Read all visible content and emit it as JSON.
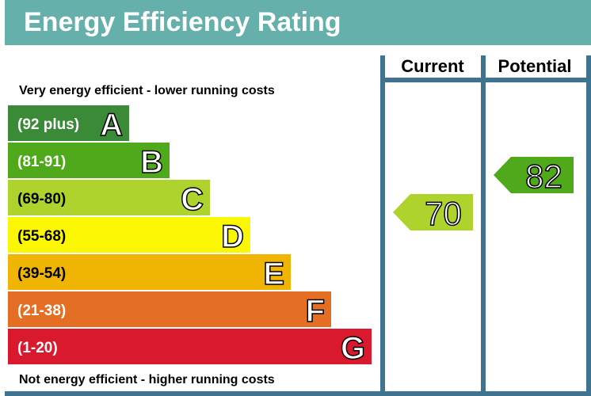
{
  "title": "Energy Efficiency Rating",
  "chart_data": {
    "type": "bar",
    "title": "Energy Efficiency Rating",
    "top_note": "Very energy efficient - lower running costs",
    "bottom_note": "Not energy efficient - higher running costs",
    "columns": [
      "Current",
      "Potential"
    ],
    "bands": [
      {
        "range": "(92 plus)",
        "letter": "A",
        "color": "#3a8a37"
      },
      {
        "range": "(81-91)",
        "letter": "B",
        "color": "#4fa91a"
      },
      {
        "range": "(69-80)",
        "letter": "C",
        "color": "#add32c"
      },
      {
        "range": "(55-68)",
        "letter": "D",
        "color": "#fbf603"
      },
      {
        "range": "(39-54)",
        "letter": "E",
        "color": "#efb502"
      },
      {
        "range": "(21-38)",
        "letter": "F",
        "color": "#e46f24"
      },
      {
        "range": "(1-20)",
        "letter": "G",
        "color": "#d9192d"
      }
    ],
    "current": {
      "value": "70",
      "band": "C",
      "color": "#add32c"
    },
    "potential": {
      "value": "82",
      "band": "B",
      "color": "#4fa91a"
    }
  },
  "colors": {
    "header": "#65b0ab",
    "grid": "#3f7490"
  }
}
